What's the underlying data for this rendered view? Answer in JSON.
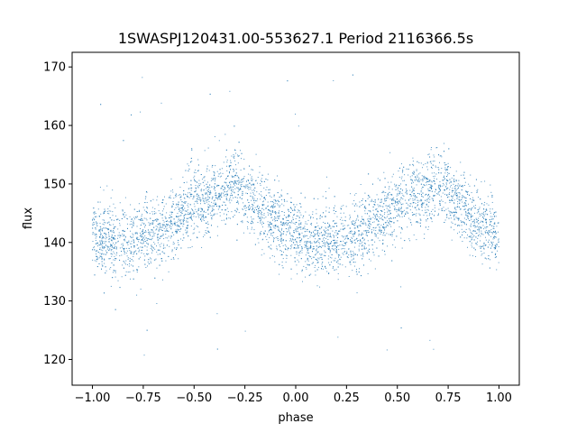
{
  "chart_data": {
    "type": "scatter",
    "title": "1SWASPJ120431.00-553627.1 Period 2116366.5s",
    "xlabel": "phase",
    "ylabel": "flux",
    "xlim": [
      -1.1,
      1.1
    ],
    "ylim": [
      115.6,
      172.5
    ],
    "x_ticks": [
      -1.0,
      -0.75,
      -0.5,
      -0.25,
      0.0,
      0.25,
      0.5,
      0.75,
      1.0
    ],
    "x_tick_labels": [
      "−1.00",
      "−0.75",
      "−0.50",
      "−0.25",
      "0.00",
      "0.25",
      "0.50",
      "0.75",
      "1.00"
    ],
    "y_ticks": [
      120,
      130,
      140,
      150,
      160,
      170
    ],
    "y_tick_labels": [
      "120",
      "130",
      "140",
      "150",
      "160",
      "170"
    ],
    "grid": false,
    "marker_color": "#1f77b4",
    "series": [
      {
        "profile": [
          [
            -1.0,
            141.5
          ],
          [
            -0.95,
            140.5
          ],
          [
            -0.9,
            140.0
          ],
          [
            -0.85,
            140.5
          ],
          [
            -0.8,
            140.0
          ],
          [
            -0.75,
            141.0
          ],
          [
            -0.7,
            141.5
          ],
          [
            -0.65,
            142.5
          ],
          [
            -0.6,
            143.5
          ],
          [
            -0.55,
            145.0
          ],
          [
            -0.5,
            146.5
          ],
          [
            -0.45,
            147.5
          ],
          [
            -0.4,
            148.0
          ],
          [
            -0.35,
            149.0
          ],
          [
            -0.3,
            150.0
          ],
          [
            -0.25,
            148.5
          ],
          [
            -0.2,
            146.5
          ],
          [
            -0.15,
            145.0
          ],
          [
            -0.1,
            143.5
          ],
          [
            -0.05,
            142.0
          ],
          [
            0.0,
            141.5
          ],
          [
            0.05,
            140.5
          ],
          [
            0.1,
            140.0
          ],
          [
            0.15,
            140.5
          ],
          [
            0.2,
            140.0
          ],
          [
            0.25,
            141.0
          ],
          [
            0.3,
            141.5
          ],
          [
            0.35,
            142.5
          ],
          [
            0.4,
            143.5
          ],
          [
            0.45,
            145.0
          ],
          [
            0.5,
            146.5
          ],
          [
            0.55,
            147.5
          ],
          [
            0.6,
            148.0
          ],
          [
            0.65,
            149.0
          ],
          [
            0.7,
            150.0
          ],
          [
            0.75,
            148.5
          ],
          [
            0.8,
            146.5
          ],
          [
            0.85,
            145.0
          ],
          [
            0.9,
            143.5
          ],
          [
            0.95,
            142.0
          ],
          [
            1.0,
            141.5
          ]
        ],
        "scatter_sigma": 3.0,
        "outlier_range": [
          118,
          169
        ],
        "point_count": 5200
      }
    ]
  }
}
